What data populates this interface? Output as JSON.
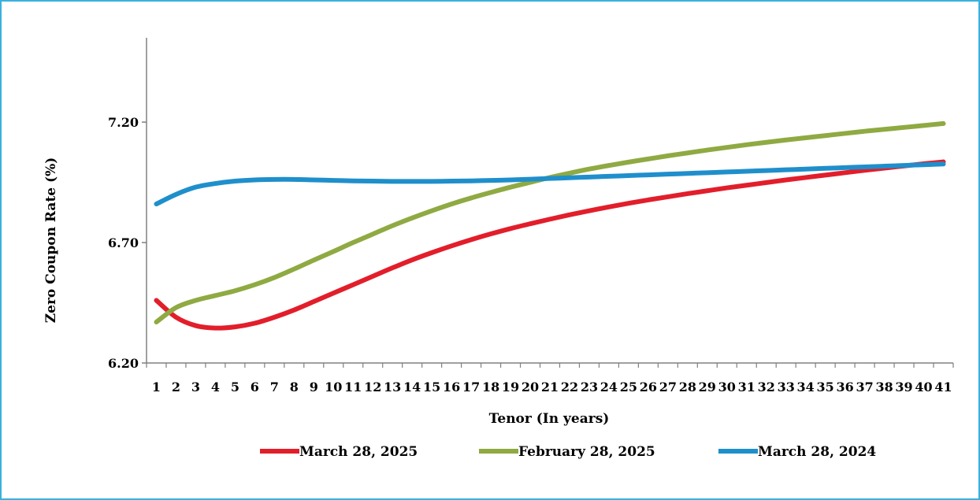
{
  "chart_data": {
    "type": "line",
    "title": "",
    "xlabel": "Tenor (In years)",
    "ylabel": "Zero Coupon Rate (%)",
    "x": [
      1,
      2,
      3,
      4,
      5,
      6,
      7,
      8,
      9,
      10,
      11,
      12,
      13,
      14,
      15,
      16,
      17,
      18,
      19,
      20,
      21,
      22,
      23,
      24,
      25,
      26,
      27,
      28,
      29,
      30,
      31,
      32,
      33,
      34,
      35,
      36,
      37,
      38,
      39,
      40,
      41
    ],
    "x_tick_labels": [
      "1",
      "2",
      "3",
      "4",
      "5",
      "6",
      "7",
      "8",
      "9",
      "10",
      "11",
      "12",
      "13",
      "14",
      "15",
      "16",
      "17",
      "18",
      "19",
      "20",
      "21",
      "22",
      "23",
      "24",
      "25",
      "26",
      "27",
      "28",
      "29",
      "30",
      "31",
      "32",
      "33",
      "34",
      "35",
      "36",
      "37",
      "38",
      "39",
      "40",
      "41"
    ],
    "y_ticks": [
      6.2,
      6.7,
      7.2
    ],
    "y_tick_labels": [
      "6.20",
      "6.70",
      "7.20"
    ],
    "ylim": [
      6.2,
      7.55
    ],
    "grid": false,
    "legend": "bottom",
    "series": [
      {
        "name": "March 28, 2025",
        "color": "#e21e2b",
        "values": [
          6.46,
          6.39,
          6.355,
          6.345,
          6.35,
          6.365,
          6.39,
          6.42,
          6.455,
          6.49,
          6.525,
          6.56,
          6.595,
          6.628,
          6.658,
          6.686,
          6.712,
          6.736,
          6.758,
          6.778,
          6.797,
          6.815,
          6.832,
          6.848,
          6.863,
          6.877,
          6.89,
          6.903,
          6.915,
          6.927,
          6.938,
          6.949,
          6.96,
          6.97,
          6.98,
          6.99,
          7.0,
          7.009,
          7.018,
          7.027,
          7.035
        ]
      },
      {
        "name": "February 28, 2025",
        "color": "#8faa42",
        "values": [
          6.37,
          6.43,
          6.46,
          6.48,
          6.5,
          6.525,
          6.555,
          6.59,
          6.627,
          6.663,
          6.7,
          6.735,
          6.77,
          6.802,
          6.832,
          6.86,
          6.885,
          6.908,
          6.93,
          6.95,
          6.97,
          6.988,
          7.005,
          7.02,
          7.034,
          7.047,
          7.06,
          7.072,
          7.084,
          7.095,
          7.106,
          7.116,
          7.126,
          7.135,
          7.144,
          7.153,
          7.162,
          7.17,
          7.178,
          7.186,
          7.194
        ]
      },
      {
        "name": "March 28, 2024",
        "color": "#1f8fcc",
        "values": [
          6.86,
          6.9,
          6.93,
          6.945,
          6.955,
          6.96,
          6.962,
          6.962,
          6.96,
          6.958,
          6.956,
          6.955,
          6.954,
          6.954,
          6.954,
          6.955,
          6.956,
          6.958,
          6.96,
          6.963,
          6.966,
          6.969,
          6.972,
          6.975,
          6.978,
          6.981,
          6.984,
          6.987,
          6.99,
          6.993,
          6.996,
          6.999,
          7.002,
          7.005,
          7.008,
          7.011,
          7.014,
          7.017,
          7.02,
          7.023,
          7.026
        ]
      }
    ]
  }
}
